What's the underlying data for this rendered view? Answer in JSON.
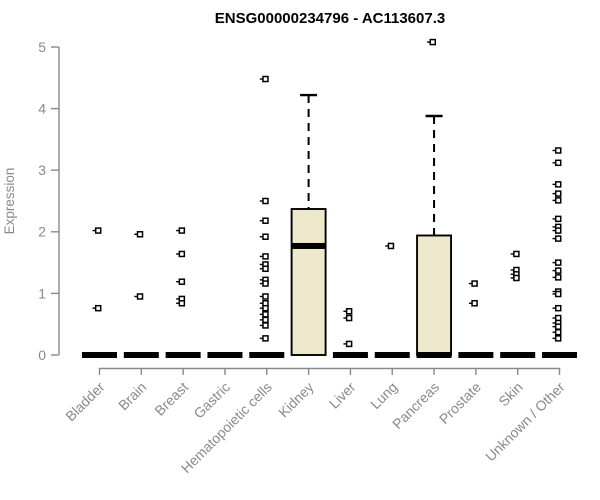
{
  "colors": {
    "background": "#FFFFFF",
    "box_fill": "#EEE8CD",
    "box_border": "#000000",
    "median": "#000000",
    "whisker": "#000000",
    "outlier_border": "#000000",
    "outlier_fill": "#FFFFFF",
    "axis": "#8A8A8A",
    "axis_text": "#8A8A8A",
    "title_text": "#000000"
  },
  "chart_data": {
    "type": "boxplot",
    "title": "ENSG00000234796 - AC113607.3",
    "xlabel": "",
    "ylabel": "Expression",
    "ylim": [
      0,
      5
    ],
    "yticks": [
      0,
      1,
      2,
      3,
      4,
      5
    ],
    "grid": false,
    "legend": "none",
    "categories": [
      "Bladder",
      "Brain",
      "Breast",
      "Gastric",
      "Hematopoietic cells",
      "Kidney",
      "Liver",
      "Lung",
      "Pancreas",
      "Prostate",
      "Skin",
      "Unknown / Other"
    ],
    "series": [
      {
        "category": "Bladder",
        "whisker_low": 0,
        "q1": 0,
        "median": 0,
        "q3": 0,
        "whisker_high": 0,
        "outliers": [
          2.02,
          0.76
        ]
      },
      {
        "category": "Brain",
        "whisker_low": 0,
        "q1": 0,
        "median": 0,
        "q3": 0,
        "whisker_high": 0,
        "outliers": [
          1.96,
          0.95
        ]
      },
      {
        "category": "Breast",
        "whisker_low": 0,
        "q1": 0,
        "median": 0,
        "q3": 0,
        "whisker_high": 0,
        "outliers": [
          2.02,
          1.64,
          1.19,
          0.91,
          0.84
        ]
      },
      {
        "category": "Gastric",
        "whisker_low": 0,
        "q1": 0,
        "median": 0,
        "q3": 0,
        "whisker_high": 0,
        "outliers": []
      },
      {
        "category": "Hematopoietic cells",
        "whisker_low": 0,
        "q1": 0,
        "median": 0,
        "q3": 0,
        "whisker_high": 0,
        "outliers": [
          4.48,
          2.5,
          2.18,
          1.92,
          1.6,
          1.47,
          1.4,
          1.22,
          1.16,
          0.95,
          0.84,
          0.76,
          0.66,
          0.57,
          0.48,
          0.27
        ]
      },
      {
        "category": "Kidney",
        "whisker_low": 0,
        "q1": 0,
        "median": 1.77,
        "q3": 2.37,
        "whisker_high": 4.22,
        "outliers": []
      },
      {
        "category": "Liver",
        "whisker_low": 0,
        "q1": 0,
        "median": 0,
        "q3": 0,
        "whisker_high": 0,
        "outliers": [
          0.71,
          0.6,
          0.18
        ]
      },
      {
        "category": "Lung",
        "whisker_low": 0,
        "q1": 0,
        "median": 0,
        "q3": 0,
        "whisker_high": 0,
        "outliers": [
          1.77
        ]
      },
      {
        "category": "Pancreas",
        "whisker_low": 0,
        "q1": 0,
        "median": 0,
        "q3": 1.94,
        "whisker_high": 3.88,
        "outliers": [
          5.08
        ]
      },
      {
        "category": "Prostate",
        "whisker_low": 0,
        "q1": 0,
        "median": 0,
        "q3": 0,
        "whisker_high": 0,
        "outliers": [
          1.16,
          0.84
        ]
      },
      {
        "category": "Skin",
        "whisker_low": 0,
        "q1": 0,
        "median": 0,
        "q3": 0,
        "whisker_high": 0,
        "outliers": [
          1.64,
          1.38,
          1.31,
          1.25
        ]
      },
      {
        "category": "Unknown / Other",
        "whisker_low": 0,
        "q1": 0,
        "median": 0,
        "q3": 0,
        "whisker_high": 0,
        "outliers": [
          3.32,
          3.12,
          2.77,
          2.62,
          2.51,
          2.21,
          2.08,
          2.02,
          1.89,
          1.5,
          1.37,
          1.26,
          1.03,
          0.99,
          0.76,
          0.6,
          0.52,
          0.46,
          0.37,
          0.27
        ]
      }
    ]
  }
}
